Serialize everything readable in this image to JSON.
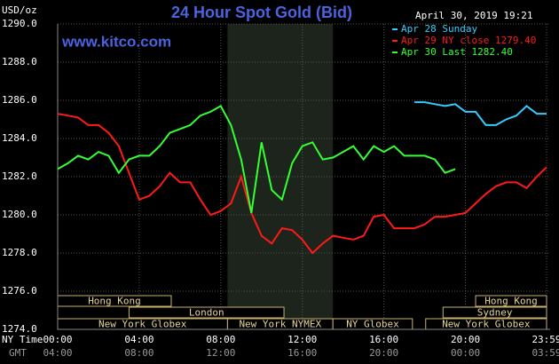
{
  "chart_data": {
    "type": "line",
    "title": "24 Hour Spot Gold (Bid)",
    "unit_label": "USD/oz",
    "timestamp": "April 30, 2019 19:21",
    "source": "www.kitco.com",
    "x_row_label": "NY Time",
    "x2_row_label": "GMT",
    "x": [
      0,
      0.5,
      1,
      1.5,
      2,
      2.5,
      3,
      3.5,
      4,
      4.5,
      5,
      5.5,
      6,
      6.5,
      7,
      7.5,
      8,
      8.5,
      9,
      9.5,
      10,
      10.5,
      11,
      11.5,
      12,
      12.5,
      13,
      13.5,
      14,
      14.5,
      15,
      15.5,
      16,
      16.5,
      17,
      17.5,
      18,
      18.5,
      19,
      19.5,
      20,
      20.5,
      21,
      21.5,
      22,
      22.5,
      23,
      23.5,
      23.98
    ],
    "series": [
      {
        "name": "Apr 28 Sunday",
        "color": "#33ccff",
        "values": [
          null,
          null,
          null,
          null,
          null,
          null,
          null,
          null,
          null,
          null,
          null,
          null,
          null,
          null,
          null,
          null,
          null,
          null,
          null,
          null,
          null,
          null,
          null,
          null,
          null,
          null,
          null,
          null,
          null,
          null,
          null,
          null,
          null,
          null,
          null,
          1285.9,
          1285.9,
          1285.8,
          1285.7,
          1285.8,
          1285.4,
          1285.4,
          1284.7,
          1284.7,
          1285.0,
          1285.2,
          1285.7,
          1285.3,
          1285.3
        ]
      },
      {
        "name": "Apr 29 NY close 1279.40",
        "color": "#ff1a1a",
        "values": [
          1285.3,
          1285.2,
          1285.1,
          1284.7,
          1284.7,
          1284.3,
          1283.6,
          1282.2,
          1280.8,
          1281.0,
          1281.5,
          1282.2,
          1281.7,
          1281.7,
          1280.8,
          1280.0,
          1280.2,
          1280.6,
          1282.0,
          1280.1,
          1278.9,
          1278.5,
          1279.3,
          1279.2,
          1278.7,
          1278.0,
          1278.5,
          1278.9,
          1278.8,
          1278.7,
          1278.9,
          1279.9,
          1280.0,
          1279.3,
          1279.3,
          1279.3,
          1279.5,
          1279.9,
          1279.9,
          1280.0,
          1280.1,
          1280.6,
          1281.1,
          1281.5,
          1281.7,
          1281.7,
          1281.4,
          1282.0,
          1282.5
        ]
      },
      {
        "name": "Apr 30 Last 1282.40",
        "color": "#33ff33",
        "values": [
          1282.4,
          1282.7,
          1283.1,
          1282.9,
          1283.3,
          1283.1,
          1282.2,
          1282.9,
          1283.1,
          1283.1,
          1283.6,
          1284.3,
          1284.5,
          1284.7,
          1285.2,
          1285.4,
          1285.7,
          1284.7,
          1282.9,
          1280.1,
          1283.8,
          1281.3,
          1280.8,
          1282.7,
          1283.6,
          1283.8,
          1282.9,
          1283.0,
          1283.3,
          1283.6,
          1282.9,
          1283.6,
          1283.3,
          1283.6,
          1283.1,
          1283.1,
          1283.1,
          1282.9,
          1282.2,
          1282.4,
          null,
          null,
          null,
          null,
          null,
          null,
          null,
          null,
          null
        ]
      }
    ],
    "xlim": [
      0,
      23.98
    ],
    "ylim": [
      1274,
      1290
    ],
    "yticks": [
      {
        "value": 1274,
        "label": "1274.0"
      },
      {
        "value": 1276,
        "label": "1276.0"
      },
      {
        "value": 1278,
        "label": "1278.0"
      },
      {
        "value": 1280,
        "label": "1280.0"
      },
      {
        "value": 1282,
        "label": "1282.0"
      },
      {
        "value": 1284,
        "label": "1284.0"
      },
      {
        "value": 1286,
        "label": "1286.0"
      },
      {
        "value": 1288,
        "label": "1288.0"
      },
      {
        "value": 1290,
        "label": "1290.0"
      }
    ],
    "xticks": [
      {
        "value": 0,
        "label": "00:00"
      },
      {
        "value": 4,
        "label": "04:00"
      },
      {
        "value": 8,
        "label": "08:00"
      },
      {
        "value": 12,
        "label": "12:00"
      },
      {
        "value": 16,
        "label": "16:00"
      },
      {
        "value": 20,
        "label": "20:00"
      },
      {
        "value": 23.98,
        "label": "23:59"
      }
    ],
    "x2ticks": [
      {
        "value": 0,
        "label": "04:00"
      },
      {
        "value": 4,
        "label": "08:00"
      },
      {
        "value": 8,
        "label": "12:00"
      },
      {
        "value": 12,
        "label": "16:00"
      },
      {
        "value": 16,
        "label": "20:00"
      },
      {
        "value": 20,
        "label": "00:00"
      },
      {
        "value": 23.98,
        "label": "03:59"
      }
    ],
    "grid": true,
    "shaded_range": [
      8.33,
      13.5
    ],
    "sessions": [
      {
        "label": "Hong Kong",
        "start": 0,
        "end": 5.57,
        "row": 0
      },
      {
        "label": "Hong Kong",
        "start": 20.5,
        "end": 23.98,
        "row": 0
      },
      {
        "label": "London",
        "start": 3.5,
        "end": 11.1,
        "row": 1
      },
      {
        "label": "Sydney",
        "start": 18.9,
        "end": 23.98,
        "row": 1
      },
      {
        "label": "New York Globex",
        "start": 0,
        "end": 8.33,
        "row": 2
      },
      {
        "label": "New York NYMEX",
        "start": 8.33,
        "end": 13.5,
        "row": 2
      },
      {
        "label": "NY Globex",
        "start": 13.5,
        "end": 17.4,
        "row": 2
      },
      {
        "label": "New York Globex",
        "start": 18.05,
        "end": 23.98,
        "row": 2
      }
    ]
  }
}
